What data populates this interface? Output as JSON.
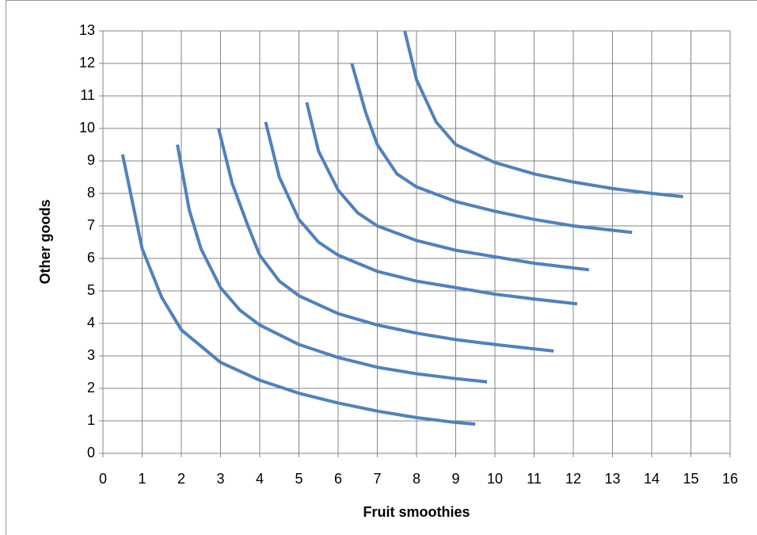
{
  "chart_data": {
    "type": "line",
    "xlabel": "Fruit smoothies",
    "ylabel": "Other goods",
    "xlim": [
      0,
      16
    ],
    "xticks": [
      0,
      1,
      2,
      3,
      4,
      5,
      6,
      7,
      8,
      9,
      10,
      11,
      12,
      13,
      14,
      15,
      16
    ],
    "ylim": [
      0,
      13
    ],
    "yticks": [
      0,
      1,
      2,
      3,
      4,
      5,
      6,
      7,
      8,
      9,
      10,
      11,
      12,
      13
    ],
    "grid": true,
    "series": [
      {
        "color": "#4f81bd",
        "x": [
          0.5,
          1,
          1.5,
          2,
          3,
          4,
          5,
          6,
          7,
          8,
          9,
          9.5
        ],
        "values": [
          9.2,
          6.3,
          4.8,
          3.8,
          2.8,
          2.25,
          1.85,
          1.55,
          1.3,
          1.1,
          0.95,
          0.9
        ]
      },
      {
        "color": "#4f81bd",
        "x": [
          1.9,
          2.2,
          2.5,
          3,
          3.5,
          4,
          5,
          6,
          7,
          8,
          9,
          9.8
        ],
        "values": [
          9.5,
          7.5,
          6.3,
          5.1,
          4.4,
          3.95,
          3.35,
          2.95,
          2.65,
          2.45,
          2.3,
          2.2
        ]
      },
      {
        "color": "#4f81bd",
        "x": [
          2.95,
          3.3,
          3.7,
          4,
          4.5,
          5,
          6,
          7,
          8,
          9,
          10,
          11.5
        ],
        "values": [
          10,
          8.3,
          7,
          6.1,
          5.3,
          4.85,
          4.3,
          3.95,
          3.7,
          3.5,
          3.35,
          3.15
        ]
      },
      {
        "color": "#4f81bd",
        "x": [
          4.15,
          4.5,
          5,
          5.5,
          6,
          7,
          8,
          9,
          10,
          11,
          12.1
        ],
        "values": [
          10.2,
          8.5,
          7.2,
          6.5,
          6.1,
          5.6,
          5.3,
          5.1,
          4.9,
          4.75,
          4.6
        ]
      },
      {
        "color": "#4f81bd",
        "x": [
          5.2,
          5.5,
          6,
          6.5,
          7,
          8,
          9,
          10,
          11,
          12.4
        ],
        "values": [
          10.8,
          9.3,
          8.1,
          7.4,
          7,
          6.55,
          6.25,
          6.05,
          5.85,
          5.65
        ]
      },
      {
        "color": "#4f81bd",
        "x": [
          6.35,
          6.7,
          7,
          7.5,
          8,
          9,
          10,
          11,
          12,
          13.5
        ],
        "values": [
          12,
          10.5,
          9.5,
          8.6,
          8.2,
          7.75,
          7.45,
          7.2,
          7.0,
          6.8
        ]
      },
      {
        "color": "#4f81bd",
        "x": [
          7.7,
          8,
          8.5,
          9,
          10,
          11,
          12,
          13,
          14,
          14.8
        ],
        "values": [
          13,
          11.5,
          10.2,
          9.5,
          8.95,
          8.6,
          8.35,
          8.15,
          8.0,
          7.9
        ]
      }
    ]
  }
}
